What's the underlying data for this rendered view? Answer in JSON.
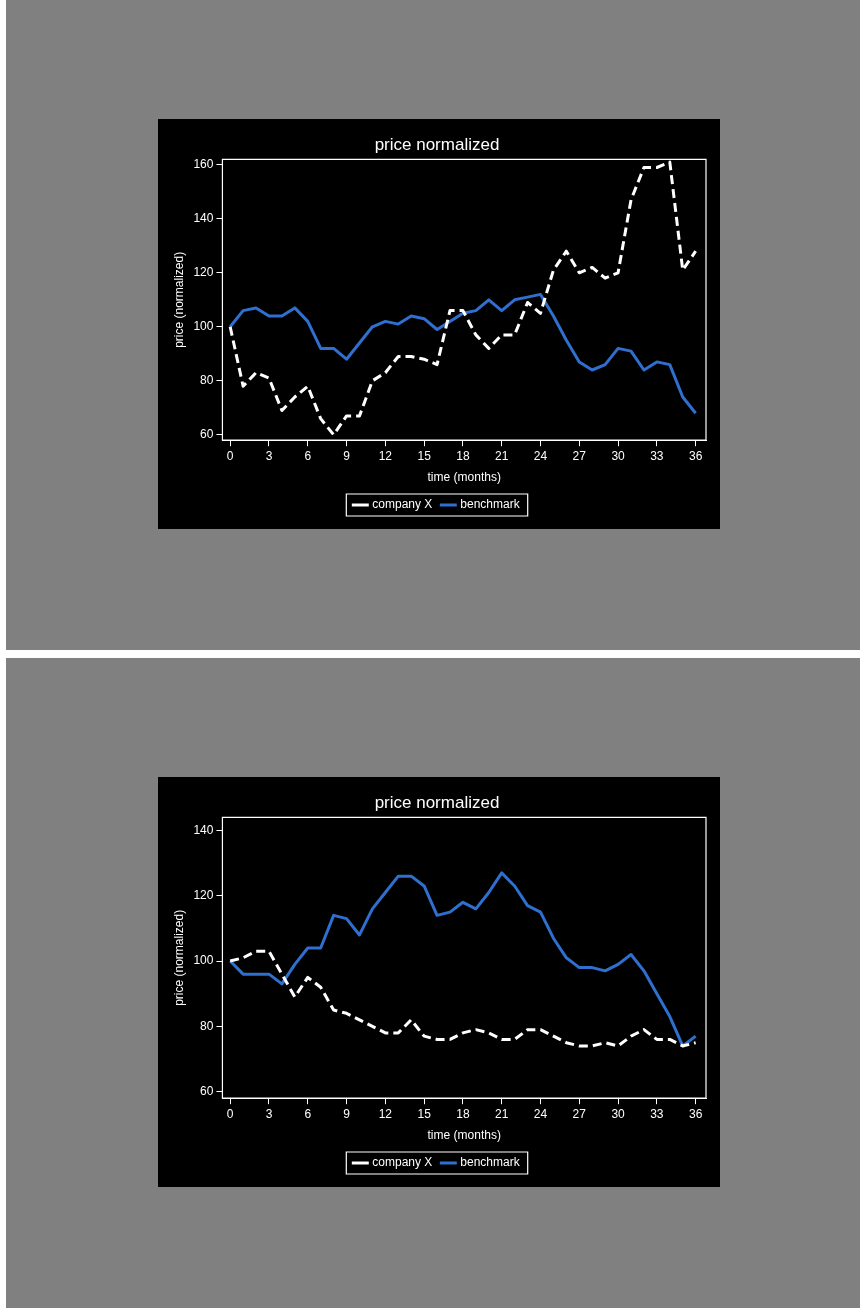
{
  "chart_data": [
    {
      "type": "line",
      "title": "price normalized",
      "xlabel": "time (months)",
      "ylabel": "price (normalized)",
      "x": [
        0,
        1,
        2,
        3,
        4,
        5,
        6,
        7,
        8,
        9,
        10,
        11,
        12,
        13,
        14,
        15,
        16,
        17,
        18,
        19,
        20,
        21,
        22,
        23,
        24,
        25,
        26,
        27,
        28,
        29,
        30,
        31,
        32,
        33,
        34,
        35,
        36
      ],
      "xlim": [
        -0.6,
        36.8
      ],
      "xticks": [
        0,
        3,
        6,
        9,
        12,
        15,
        18,
        21,
        24,
        27,
        30,
        33,
        36
      ],
      "ylim": [
        58,
        162
      ],
      "yticks": [
        60,
        80,
        100,
        120,
        140,
        160
      ],
      "grid": false,
      "legend": "bottom",
      "marker": "none",
      "series": [
        {
          "name": "company X",
          "color": "#ffffff",
          "line_style": "dashed",
          "values": [
            100,
            78,
            83,
            81,
            69,
            74,
            78,
            66,
            60,
            67,
            67,
            80,
            83,
            89,
            89,
            88,
            86,
            106,
            106,
            97,
            92,
            97,
            97,
            109,
            105,
            121,
            128,
            120,
            122,
            118,
            120,
            147,
            159,
            159,
            161,
            121,
            128
          ]
        },
        {
          "name": "benchmark",
          "color": "#2f6fd0",
          "line_style": "solid",
          "values": [
            100,
            106,
            107,
            104,
            104,
            107,
            102,
            92,
            92,
            88,
            94,
            100,
            102,
            101,
            104,
            103,
            99,
            102,
            105,
            106,
            110,
            106,
            110,
            111,
            112,
            104,
            95,
            87,
            84,
            86,
            92,
            91,
            84,
            87,
            86,
            74,
            68
          ]
        }
      ]
    },
    {
      "type": "line",
      "title": "price normalized",
      "xlabel": "time (months)",
      "ylabel": "price (normalized)",
      "x": [
        0,
        1,
        2,
        3,
        4,
        5,
        6,
        7,
        8,
        9,
        10,
        11,
        12,
        13,
        14,
        15,
        16,
        17,
        18,
        19,
        20,
        21,
        22,
        23,
        24,
        25,
        26,
        27,
        28,
        29,
        30,
        31,
        32,
        33,
        34,
        35,
        36
      ],
      "xlim": [
        -0.6,
        36.8
      ],
      "xticks": [
        0,
        3,
        6,
        9,
        12,
        15,
        18,
        21,
        24,
        27,
        30,
        33,
        36
      ],
      "ylim": [
        58,
        144
      ],
      "yticks": [
        60,
        80,
        100,
        120,
        140
      ],
      "grid": false,
      "legend": "bottom",
      "marker": "none",
      "series": [
        {
          "name": "company X",
          "color": "#ffffff",
          "line_style": "dashed",
          "values": [
            100,
            101,
            103,
            103,
            96,
            89,
            95,
            92,
            85,
            84,
            82,
            80,
            78,
            78,
            82,
            77,
            76,
            76,
            78,
            79,
            78,
            76,
            76,
            79,
            79,
            77,
            75,
            74,
            74,
            75,
            74,
            77,
            79,
            76,
            76,
            74,
            75
          ]
        },
        {
          "name": "benchmark",
          "color": "#2f6fd0",
          "line_style": "solid",
          "values": [
            100,
            96,
            96,
            96,
            93,
            99,
            104,
            104,
            114,
            113,
            108,
            116,
            121,
            126,
            126,
            123,
            114,
            115,
            118,
            116,
            121,
            127,
            123,
            117,
            115,
            107,
            101,
            98,
            98,
            97,
            99,
            102,
            97,
            90,
            83,
            74,
            77
          ]
        }
      ]
    }
  ]
}
